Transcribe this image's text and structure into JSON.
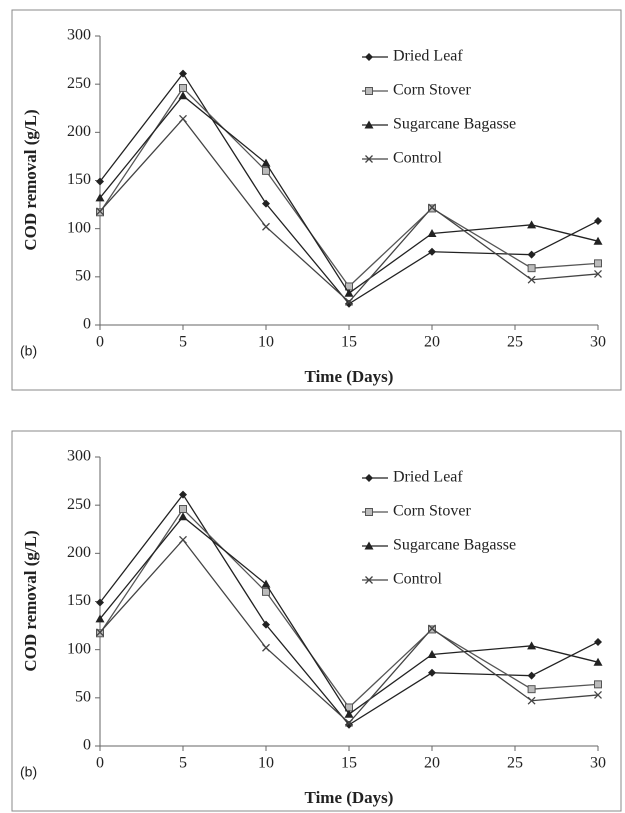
{
  "chart_data": [
    {
      "type": "line",
      "panel_label": "(b)",
      "xlabel": "Time (Days)",
      "ylabel": "COD removal (g/L)",
      "x": [
        0,
        5,
        10,
        15,
        20,
        26,
        30
      ],
      "xlim": [
        0,
        30
      ],
      "xticks": [
        0,
        5,
        10,
        15,
        20,
        25,
        30
      ],
      "ylim": [
        0,
        300
      ],
      "yticks": [
        0,
        50,
        100,
        150,
        200,
        250,
        300
      ],
      "legend": "upper right",
      "series": [
        {
          "name": "Dried Leaf",
          "color": "#222222",
          "marker": "diamond",
          "values": [
            149,
            261,
            126,
            22,
            76,
            73,
            108
          ]
        },
        {
          "name": "Corn Stover",
          "color": "#555555",
          "marker": "square",
          "values": [
            117,
            246,
            160,
            40,
            121,
            59,
            64
          ]
        },
        {
          "name": "Sugarcane Bagasse",
          "color": "#222222",
          "marker": "triangle",
          "values": [
            132,
            238,
            168,
            33,
            95,
            104,
            87
          ]
        },
        {
          "name": "Control",
          "color": "#444444",
          "marker": "x",
          "values": [
            118,
            214,
            102,
            24,
            122,
            47,
            53
          ]
        }
      ]
    },
    {
      "type": "line",
      "panel_label": "(b)",
      "xlabel": "Time (Days)",
      "ylabel": "COD removal (g/L)",
      "x": [
        0,
        5,
        10,
        15,
        20,
        26,
        30
      ],
      "xlim": [
        0,
        30
      ],
      "xticks": [
        0,
        5,
        10,
        15,
        20,
        25,
        30
      ],
      "ylim": [
        0,
        300
      ],
      "yticks": [
        0,
        50,
        100,
        150,
        200,
        250,
        300
      ],
      "legend": "upper right",
      "series": [
        {
          "name": "Dried Leaf",
          "color": "#222222",
          "marker": "diamond",
          "values": [
            149,
            261,
            126,
            22,
            76,
            73,
            108
          ]
        },
        {
          "name": "Corn Stover",
          "color": "#555555",
          "marker": "square",
          "values": [
            117,
            246,
            160,
            40,
            121,
            59,
            64
          ]
        },
        {
          "name": "Sugarcane Bagasse",
          "color": "#222222",
          "marker": "triangle",
          "values": [
            132,
            238,
            168,
            33,
            95,
            104,
            87
          ]
        },
        {
          "name": "Control",
          "color": "#444444",
          "marker": "x",
          "values": [
            118,
            214,
            102,
            24,
            122,
            47,
            53
          ]
        }
      ]
    }
  ]
}
